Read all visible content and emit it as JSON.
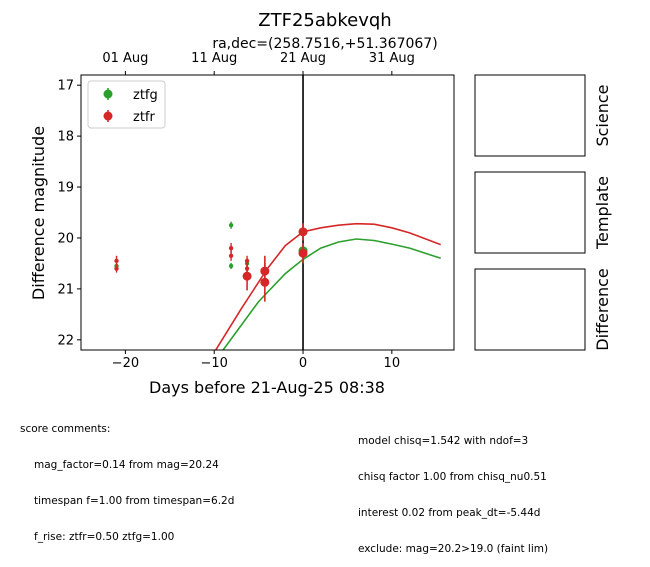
{
  "chart_data": {
    "type": "scatter",
    "title": "ZTF25abkevqh",
    "subtitle": "ra,dec=(258.7516,+51.367067)",
    "xlabel": "Days before 21-Aug-25 08:38",
    "ylabel": "Difference magnitude",
    "xlim": [
      -25,
      17
    ],
    "ylim": [
      22.2,
      16.8
    ],
    "y_inverted": true,
    "x_ticks": [
      -20,
      -10,
      0,
      10
    ],
    "x_tick_labels": [
      "−20",
      "−10",
      "0",
      "10"
    ],
    "y_ticks": [
      17,
      18,
      19,
      20,
      21,
      22
    ],
    "y_tick_labels": [
      "17",
      "18",
      "19",
      "20",
      "21",
      "22"
    ],
    "top_ticks": [
      {
        "x": -20,
        "label": "01 Aug"
      },
      {
        "x": -10,
        "label": "11 Aug"
      },
      {
        "x": 0,
        "label": "21 Aug"
      },
      {
        "x": 10,
        "label": "31 Aug"
      }
    ],
    "vline_x": 0,
    "legend_position": "top-left",
    "series": [
      {
        "name": "ztfg",
        "color": "#2ca02c",
        "small_points": [
          {
            "x": -21.0,
            "y": 20.55,
            "err": 0.08
          },
          {
            "x": -8.1,
            "y": 19.75,
            "err": 0.07
          },
          {
            "x": -8.1,
            "y": 20.55,
            "err": 0.06
          },
          {
            "x": -6.3,
            "y": 20.5,
            "err": 0.09
          }
        ],
        "big_points": [
          {
            "x": 0,
            "y": 20.25,
            "err": 0.12
          }
        ],
        "model": [
          [
            -9,
            22.2
          ],
          [
            -5,
            21.25
          ],
          [
            -2,
            20.7
          ],
          [
            0,
            20.42
          ],
          [
            2,
            20.2
          ],
          [
            4,
            20.08
          ],
          [
            6,
            20.02
          ],
          [
            8,
            20.05
          ],
          [
            10,
            20.12
          ],
          [
            12,
            20.2
          ],
          [
            15.5,
            20.4
          ]
        ]
      },
      {
        "name": "ztfr",
        "color": "#d62728",
        "small_points": [
          {
            "x": -21.0,
            "y": 20.45,
            "err": 0.1
          },
          {
            "x": -21.0,
            "y": 20.6,
            "err": 0.08
          },
          {
            "x": -8.1,
            "y": 20.2,
            "err": 0.1
          },
          {
            "x": -8.1,
            "y": 20.35,
            "err": 0.1
          },
          {
            "x": -6.3,
            "y": 20.45,
            "err": 0.1
          },
          {
            "x": -6.3,
            "y": 20.6,
            "err": 0.1
          }
        ],
        "big_points": [
          {
            "x": -6.3,
            "y": 20.75,
            "err": 0.28
          },
          {
            "x": -4.3,
            "y": 20.65,
            "err": 0.3
          },
          {
            "x": -4.3,
            "y": 20.87,
            "err": 0.38
          },
          {
            "x": 0,
            "y": 19.88,
            "err": 0.17
          },
          {
            "x": 0,
            "y": 20.3,
            "err": 0.2
          }
        ],
        "model": [
          [
            -10,
            22.25
          ],
          [
            -7,
            21.4
          ],
          [
            -4,
            20.6
          ],
          [
            -2,
            20.15
          ],
          [
            0,
            19.88
          ],
          [
            2,
            19.8
          ],
          [
            4,
            19.75
          ],
          [
            6,
            19.72
          ],
          [
            8,
            19.73
          ],
          [
            10,
            19.8
          ],
          [
            12,
            19.9
          ],
          [
            15.5,
            20.13
          ]
        ]
      }
    ],
    "thumbnails": [
      {
        "label": "Science"
      },
      {
        "label": "Template"
      },
      {
        "label": "Difference"
      }
    ]
  },
  "comments_left": {
    "heading": "score comments:",
    "lines": [
      "mag_factor=0.14 from mag=20.24",
      "timespan f=1.00 from timespan=6.2d",
      "f_rise: ztfr=0.50 ztfg=1.00"
    ]
  },
  "comments_right": {
    "lines": [
      "model chisq=1.542 with ndof=3",
      "chisq factor 1.00 from chisq_nu0.51",
      "interest 0.02 from peak_dt=-5.44d",
      "exclude: mag=20.2>19.0 (faint lim)"
    ]
  }
}
